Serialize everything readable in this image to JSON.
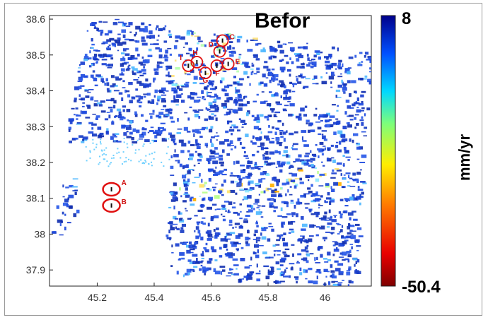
{
  "title": "Befor",
  "colorbar": {
    "max_label": "8",
    "min_label": "-50.4",
    "unit": "mm/yr",
    "max": 8,
    "min": -50.4,
    "colormap": "jet"
  },
  "axes": {
    "x_ticks": [
      "45.2",
      "45.4",
      "45.6",
      "45.8",
      "46"
    ],
    "y_ticks": [
      "38.6",
      "38.5",
      "38.4",
      "38.3",
      "38.2",
      "38.1",
      "38",
      "37.9"
    ]
  },
  "markers": [
    {
      "label": "A",
      "lon": 45.25,
      "lat": 38.125
    },
    {
      "label": "B",
      "lon": 45.25,
      "lat": 38.08
    },
    {
      "label": "C",
      "lon": 45.64,
      "lat": 38.54
    },
    {
      "label": "D",
      "lon": 45.63,
      "lat": 38.51
    },
    {
      "label": "E",
      "lon": 45.66,
      "lat": 38.475
    },
    {
      "label": "F",
      "lon": 45.62,
      "lat": 38.47
    },
    {
      "label": "G",
      "lon": 45.58,
      "lat": 38.45
    },
    {
      "label": "H",
      "lon": 45.55,
      "lat": 38.48
    },
    {
      "label": "I",
      "lon": 45.52,
      "lat": 38.47
    }
  ],
  "colors": {
    "stable": "#1a3fd0",
    "subsidence": "#c81e1e",
    "marker": "#e01010"
  }
}
